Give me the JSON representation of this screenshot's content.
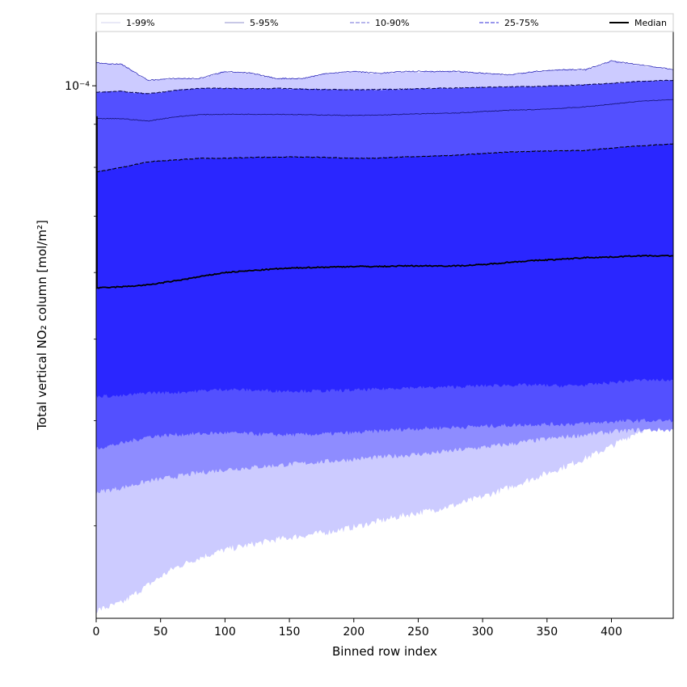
{
  "chart_data": {
    "type": "area",
    "xlabel": "Binned row index",
    "ylabel": "Total vertical NO₂ column [mol/m²]",
    "y_scale": "log",
    "xlim": [
      0,
      448
    ],
    "ylim": [
      2.33e-05,
      0.000116
    ],
    "x_ticks": [
      0,
      50,
      100,
      150,
      200,
      250,
      300,
      350,
      400
    ],
    "x_tick_labels": [
      "0",
      "50",
      "100",
      "150",
      "200",
      "250",
      "300",
      "350",
      "400"
    ],
    "y_major_tick": 0.0001,
    "y_major_tick_label": "10⁻⁴",
    "y_minor_ticks": [
      3e-05,
      4e-05,
      5e-05,
      6e-05,
      7e-05,
      8e-05,
      9e-05
    ],
    "grid": false,
    "legend_position": "top",
    "colors": {
      "band_1_99": "#cccbff",
      "band_5_95": "#8e8cff",
      "band_10_90": "#5350ff",
      "band_25_75": "#2a26ff",
      "median": "#000000",
      "edge_1_99": "#1e1ab0",
      "edge_5_95": "#1a1880",
      "edge_10_90": "#0d0b55"
    },
    "legend": [
      {
        "label": "1-99%",
        "color": "#dcdcf2",
        "dash": "solid"
      },
      {
        "label": "5-95%",
        "color": "#a8a8d8",
        "dash": "solid"
      },
      {
        "label": "10-90%",
        "color": "#8c8ae0",
        "dash": "dashed"
      },
      {
        "label": "25-75%",
        "color": "#5a57e0",
        "dash": "dashed"
      },
      {
        "label": "Median",
        "color": "#000000",
        "dash": "solid"
      }
    ],
    "x": [
      0,
      20,
      40,
      60,
      80,
      100,
      120,
      140,
      160,
      180,
      200,
      220,
      240,
      260,
      280,
      300,
      320,
      340,
      360,
      380,
      400,
      420,
      448
    ],
    "series": [
      {
        "name": "Median",
        "values": [
          5.75e-05,
          5.77e-05,
          5.8e-05,
          5.86e-05,
          5.93e-05,
          6e-05,
          6.03e-05,
          6.06e-05,
          6.08e-05,
          6.09e-05,
          6.1e-05,
          6.1e-05,
          6.11e-05,
          6.11e-05,
          6.11e-05,
          6.13e-05,
          6.17e-05,
          6.2e-05,
          6.22e-05,
          6.25e-05,
          6.26e-05,
          6.28e-05,
          6.28e-05
        ]
      },
      {
        "name": "1-99%",
        "lower": [
          2.38e-05,
          2.43e-05,
          2.55e-05,
          2.67e-05,
          2.75e-05,
          2.81e-05,
          2.85e-05,
          2.89e-05,
          2.92e-05,
          2.95e-05,
          2.99e-05,
          3.04e-05,
          3.09e-05,
          3.13e-05,
          3.18e-05,
          3.25e-05,
          3.33e-05,
          3.42e-05,
          3.51e-05,
          3.61e-05,
          3.73e-05,
          3.88e-05,
          4.03e-05
        ],
        "upper": [
          0.0001065,
          0.000106,
          0.0001015,
          0.000102,
          0.000102,
          0.000104,
          0.0001035,
          0.000102,
          0.000102,
          0.0001035,
          0.000104,
          0.0001035,
          0.000104,
          0.000104,
          0.000104,
          0.0001035,
          0.000103,
          0.000104,
          0.0001045,
          0.0001045,
          0.000107,
          0.000106,
          0.0001045
        ]
      },
      {
        "name": "5-95%",
        "lower": [
          3.29e-05,
          3.33e-05,
          3.39e-05,
          3.43e-05,
          3.47e-05,
          3.5e-05,
          3.52e-05,
          3.54e-05,
          3.56e-05,
          3.58e-05,
          3.6e-05,
          3.62e-05,
          3.64e-05,
          3.66e-05,
          3.69e-05,
          3.72e-05,
          3.75e-05,
          3.79e-05,
          3.82e-05,
          3.85e-05,
          3.88e-05,
          3.9e-05,
          3.9e-05
        ]
      },
      {
        "name": "10-90%",
        "lower": [
          3.71e-05,
          3.76e-05,
          3.83e-05,
          3.85e-05,
          3.86e-05,
          3.87e-05,
          3.86e-05,
          3.85e-05,
          3.85e-05,
          3.86e-05,
          3.87e-05,
          3.89e-05,
          3.91e-05,
          3.92e-05,
          3.93e-05,
          3.94e-05,
          3.95e-05,
          3.96e-05,
          3.96e-05,
          3.97e-05,
          3.99e-05,
          4e-05,
          4e-05
        ],
        "upper": [
          9.83e-05,
          9.85e-05,
          9.78e-05,
          9.87e-05,
          9.93e-05,
          9.93e-05,
          9.92e-05,
          9.93e-05,
          9.91e-05,
          9.9e-05,
          9.89e-05,
          9.9e-05,
          9.91e-05,
          9.93e-05,
          9.94e-05,
          9.96e-05,
          9.97e-05,
          9.98e-05,
          0.0001,
          0.0001003,
          0.0001007,
          0.0001012,
          0.0001015
        ]
      }
    ],
    "quartile_band": {
      "name": "25-75%",
      "lower": [
        4.28e-05,
        4.28e-05,
        4.32e-05,
        4.32e-05,
        4.34e-05,
        4.36e-05,
        4.35e-05,
        4.34e-05,
        4.34e-05,
        4.34e-05,
        4.35e-05,
        4.36e-05,
        4.38e-05,
        4.38e-05,
        4.39e-05,
        4.4e-05,
        4.41e-05,
        4.41e-05,
        4.4e-05,
        4.41e-05,
        4.44e-05,
        4.47e-05,
        4.47e-05
      ],
      "upper": [
        7.9e-05,
        8e-05,
        8.12e-05,
        8.16e-05,
        8.2e-05,
        8.2e-05,
        8.22e-05,
        8.23e-05,
        8.23e-05,
        8.22e-05,
        8.2e-05,
        8.21e-05,
        8.23e-05,
        8.25e-05,
        8.27e-05,
        8.31e-05,
        8.34e-05,
        8.36e-05,
        8.37e-05,
        8.38e-05,
        8.43e-05,
        8.48e-05,
        8.53e-05
      ]
    },
    "decile_band_upper": {
      "name": "5-95% upper",
      "values": [
        9.14e-05,
        9.14e-05,
        9.08e-05,
        9.18e-05,
        9.24e-05,
        9.25e-05,
        9.25e-05,
        9.25e-05,
        9.24e-05,
        9.23e-05,
        9.22e-05,
        9.23e-05,
        9.25e-05,
        9.27e-05,
        9.28e-05,
        9.32e-05,
        9.35e-05,
        9.37e-05,
        9.4e-05,
        9.44e-05,
        9.51e-05,
        9.58e-05,
        9.63e-05
      ]
    }
  }
}
